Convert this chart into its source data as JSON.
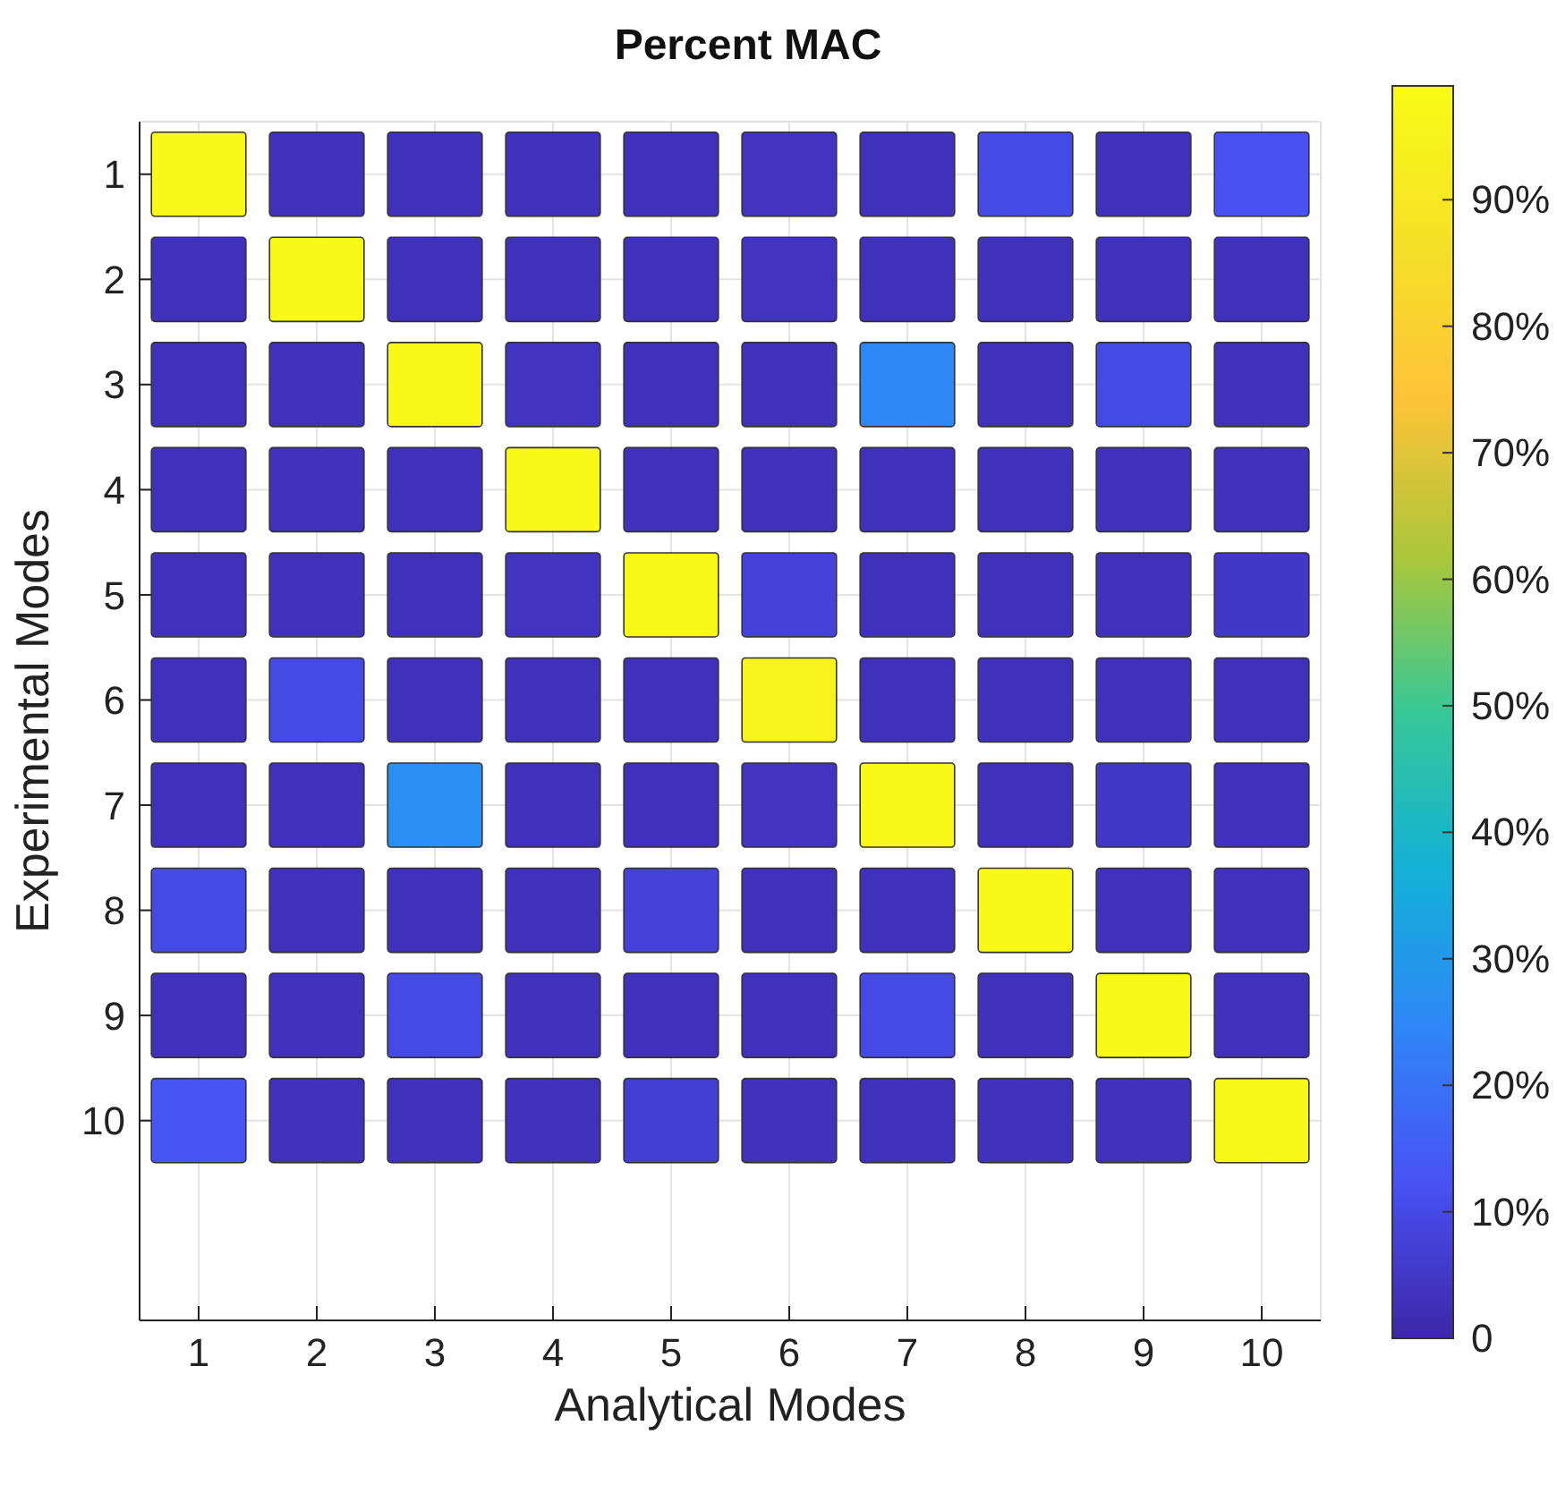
{
  "chart_data": {
    "type": "heatmap",
    "title": "Percent MAC",
    "xlabel": "Analytical Modes",
    "ylabel": "Experimental Modes",
    "categories": [
      "1",
      "2",
      "3",
      "4",
      "5",
      "6",
      "7",
      "8",
      "9",
      "10"
    ],
    "y_categories": [
      "1",
      "2",
      "3",
      "4",
      "5",
      "6",
      "7",
      "8",
      "9",
      "10"
    ],
    "cells": [
      [
        98,
        3,
        3,
        3,
        3,
        4,
        3,
        10,
        3,
        12
      ],
      [
        3,
        98,
        3,
        3,
        3,
        4,
        3,
        3,
        3,
        3
      ],
      [
        3,
        3,
        98,
        4,
        3,
        3,
        25,
        3,
        10,
        3
      ],
      [
        3,
        3,
        3,
        98,
        3,
        3,
        3,
        3,
        3,
        3
      ],
      [
        3,
        3,
        3,
        4,
        98,
        8,
        3,
        3,
        3,
        5
      ],
      [
        3,
        10,
        3,
        3,
        3,
        95,
        3,
        3,
        3,
        3
      ],
      [
        3,
        3,
        27,
        3,
        3,
        4,
        98,
        3,
        5,
        3
      ],
      [
        10,
        3,
        3,
        3,
        8,
        3,
        3,
        98,
        3,
        3
      ],
      [
        3,
        3,
        10,
        3,
        3,
        3,
        10,
        3,
        98,
        3
      ],
      [
        13,
        3,
        3,
        3,
        7,
        3,
        3,
        3,
        3,
        98
      ]
    ],
    "clim": [
      0,
      99
    ],
    "cticks": [
      {
        "value": 0,
        "label": "0"
      },
      {
        "value": 10,
        "label": "10%"
      },
      {
        "value": 20,
        "label": "20%"
      },
      {
        "value": 30,
        "label": "30%"
      },
      {
        "value": 40,
        "label": "40%"
      },
      {
        "value": 50,
        "label": "50%"
      },
      {
        "value": 60,
        "label": "60%"
      },
      {
        "value": 70,
        "label": "70%"
      },
      {
        "value": 80,
        "label": "80%"
      },
      {
        "value": 90,
        "label": "90%"
      }
    ],
    "grid": true
  }
}
